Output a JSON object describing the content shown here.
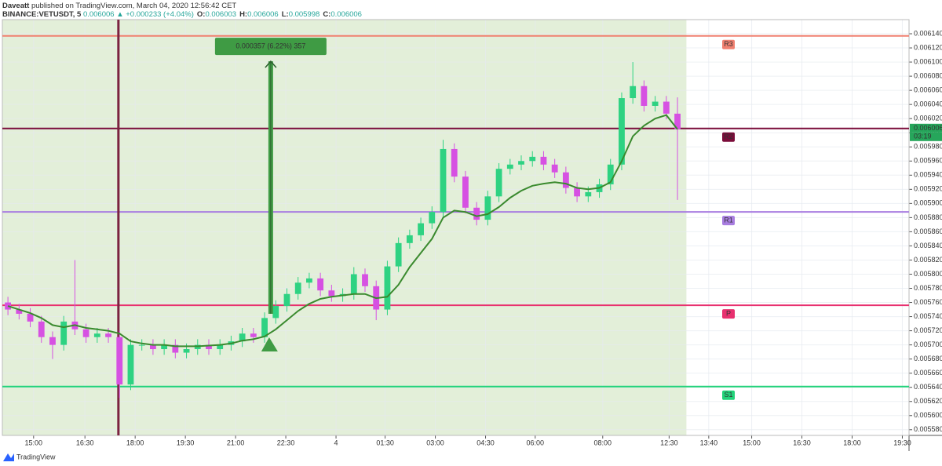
{
  "header": {
    "author": "Daveatt",
    "published": "published on TradingView.com, March 04, 2020 12:56:42 CET",
    "symbol": "BINANCE:VETUSDT, 5",
    "last": "0.006006",
    "change": "▲ +0.000233 (+4.04%)",
    "ohlc": [
      {
        "k": "O:",
        "v": "0.006003"
      },
      {
        "k": "H:",
        "v": "0.006006"
      },
      {
        "k": "L:",
        "v": "0.005998"
      },
      {
        "k": "C:",
        "v": "0.006006"
      }
    ]
  },
  "chart_data": {
    "type": "candlestick",
    "x": [
      10,
      30,
      50,
      70,
      90,
      110,
      130,
      150,
      170,
      190,
      210,
      230,
      250,
      270,
      290,
      310,
      330,
      350,
      370,
      390,
      410,
      430,
      450,
      470,
      490,
      510,
      530,
      550,
      570,
      590,
      610,
      630,
      650,
      670,
      690,
      710,
      730,
      750,
      770,
      790,
      810,
      830,
      850,
      870,
      890,
      910,
      930,
      950,
      970,
      990,
      1010,
      1030,
      1050,
      1070,
      1090,
      1110,
      1130,
      1150,
      1170,
      1190,
      1210
    ],
    "open": [
      0.00576,
      0.00575,
      0.005744,
      0.005733,
      0.005711,
      0.0057,
      0.005733,
      0.005722,
      0.005711,
      0.005716,
      0.005711,
      0.005644,
      0.0057,
      0.0057,
      0.005694,
      0.0057,
      0.005689,
      0.005694,
      0.0057,
      0.005694,
      0.0057,
      0.005705,
      0.005716,
      0.005711,
      0.005738,
      0.005755,
      0.005772,
      0.005788,
      0.005794,
      0.005777,
      0.005769,
      0.005772,
      0.0058,
      0.005783,
      0.00575,
      0.005811,
      0.005844,
      0.005855,
      0.005872,
      0.005888,
      0.005977,
      0.005938,
      0.005894,
      0.005877,
      0.00591,
      0.005949,
      0.005955,
      0.00596,
      0.005966,
      0.005955,
      0.005944,
      0.005922,
      0.00591,
      0.005916,
      0.005927,
      0.005955,
      0.006049,
      0.006066,
      0.006038,
      0.006044,
      0.006027
    ],
    "high": [
      0.005768,
      0.005758,
      0.005752,
      0.005741,
      0.005719,
      0.005741,
      0.00582,
      0.00573,
      0.005724,
      0.005724,
      0.00572,
      0.005708,
      0.005708,
      0.005708,
      0.005708,
      0.005708,
      0.005702,
      0.005708,
      0.005708,
      0.005708,
      0.005713,
      0.005724,
      0.005724,
      0.005746,
      0.005763,
      0.00578,
      0.005796,
      0.005802,
      0.005802,
      0.005785,
      0.00578,
      0.00581,
      0.005808,
      0.005791,
      0.005819,
      0.005852,
      0.005863,
      0.00588,
      0.005896,
      0.00599,
      0.005985,
      0.005946,
      0.005902,
      0.005918,
      0.005957,
      0.005963,
      0.005968,
      0.005974,
      0.005974,
      0.005963,
      0.005952,
      0.00593,
      0.005924,
      0.005935,
      0.005963,
      0.006057,
      0.0061,
      0.006074,
      0.006052,
      0.006052,
      0.00605
    ],
    "low": [
      0.005742,
      0.005736,
      0.005725,
      0.005703,
      0.00568,
      0.005692,
      0.005714,
      0.005703,
      0.005703,
      0.005703,
      0.005625,
      0.005636,
      0.005692,
      0.005686,
      0.005686,
      0.005681,
      0.005681,
      0.005686,
      0.005686,
      0.005686,
      0.005692,
      0.005697,
      0.005703,
      0.005703,
      0.00573,
      0.005747,
      0.005764,
      0.00578,
      0.005769,
      0.005761,
      0.005761,
      0.005764,
      0.005775,
      0.005735,
      0.005742,
      0.005803,
      0.005836,
      0.005847,
      0.005864,
      0.00588,
      0.00593,
      0.005886,
      0.005869,
      0.005869,
      0.005902,
      0.005941,
      0.005947,
      0.005952,
      0.005947,
      0.005936,
      0.005914,
      0.005902,
      0.005902,
      0.005908,
      0.005919,
      0.005947,
      0.006041,
      0.00603,
      0.00603,
      0.006019,
      0.005905
    ],
    "close": [
      0.00575,
      0.005744,
      0.005733,
      0.005711,
      0.0057,
      0.005733,
      0.005722,
      0.005711,
      0.005716,
      0.005711,
      0.005644,
      0.0057,
      0.0057,
      0.005694,
      0.0057,
      0.005689,
      0.005694,
      0.0057,
      0.005694,
      0.0057,
      0.005705,
      0.005716,
      0.005711,
      0.005738,
      0.005755,
      0.005772,
      0.005788,
      0.005794,
      0.005777,
      0.005769,
      0.005772,
      0.0058,
      0.005783,
      0.00575,
      0.005811,
      0.005844,
      0.005855,
      0.005872,
      0.005888,
      0.005977,
      0.005938,
      0.005894,
      0.005877,
      0.00591,
      0.005949,
      0.005955,
      0.00596,
      0.005966,
      0.005955,
      0.005944,
      0.005922,
      0.00591,
      0.005916,
      0.005927,
      0.005955,
      0.006049,
      0.006066,
      0.006038,
      0.006044,
      0.006027,
      0.006005
    ],
    "up_color": "#2ed282",
    "down_color": "#d651e2",
    "ma": {
      "color": "#3a8a2e",
      "values": [
        0.005755,
        0.00575,
        0.005745,
        0.005738,
        0.005728,
        0.005725,
        0.005728,
        0.005724,
        0.005722,
        0.00572,
        0.005716,
        0.005705,
        0.005702,
        0.0057,
        0.0057,
        0.005698,
        0.005698,
        0.005698,
        0.005699,
        0.0057,
        0.005702,
        0.005706,
        0.005708,
        0.005712,
        0.005722,
        0.005735,
        0.005748,
        0.005758,
        0.005765,
        0.005768,
        0.00577,
        0.005772,
        0.005772,
        0.005766,
        0.005768,
        0.005785,
        0.00581,
        0.00583,
        0.00585,
        0.00588,
        0.00589,
        0.005888,
        0.005882,
        0.005885,
        0.005895,
        0.005908,
        0.005918,
        0.005925,
        0.005928,
        0.00593,
        0.005928,
        0.005922,
        0.00592,
        0.005922,
        0.00593,
        0.00596,
        0.005995,
        0.00601,
        0.00602,
        0.006025,
        0.006005
      ]
    },
    "levels": [
      {
        "label": "R3",
        "value": 0.006137,
        "color": "#f08070"
      },
      {
        "label": "R2",
        "value": 0.006006,
        "color": "#7a0c3a"
      },
      {
        "label": "R1",
        "value": 0.005888,
        "color": "#a87de0"
      },
      {
        "label": "P",
        "value": 0.005756,
        "color": "#e8306f"
      },
      {
        "label": "S1",
        "value": 0.005641,
        "color": "#22d37a"
      }
    ],
    "vline": 208,
    "measure": {
      "label": "0.000357 (6.22%) 357",
      "x": 481,
      "from": 0.005744,
      "to": 0.006101,
      "color": "#3f9b44"
    },
    "last_price": 0.006006,
    "countdown": "03:19",
    "xlim": [
      0,
      1625
    ],
    "ylim": [
      0.005572,
      0.00616
    ],
    "grid": true,
    "xticks": [
      {
        "value": 56,
        "label": "15:00"
      },
      {
        "value": 148,
        "label": "16:30"
      },
      {
        "value": 238,
        "label": "18:00"
      },
      {
        "value": 328,
        "label": "19:30"
      },
      {
        "value": 418,
        "label": "21:00"
      },
      {
        "value": 508,
        "label": "22:30"
      },
      {
        "value": 598,
        "label": "4"
      },
      {
        "value": 686,
        "label": "01:30"
      },
      {
        "value": 776,
        "label": "03:00"
      },
      {
        "value": 866,
        "label": "04:30"
      },
      {
        "value": 955,
        "label": "06:00"
      },
      {
        "value": 1076,
        "label": "08:00"
      },
      {
        "value": 1195,
        "label": "12:30"
      },
      {
        "value": 1266,
        "label": "13:40"
      },
      {
        "value": 1343,
        "label": "15:00"
      },
      {
        "value": 1433,
        "label": "16:30"
      },
      {
        "value": 1523,
        "label": "18:00"
      },
      {
        "value": 1613,
        "label": "19:30"
      }
    ],
    "yticks": [
      {
        "value": 0.00558,
        "label": "0.005580"
      },
      {
        "value": 0.0056,
        "label": "0.005600"
      },
      {
        "value": 0.00562,
        "label": "0.005620"
      },
      {
        "value": 0.00564,
        "label": "0.005640"
      },
      {
        "value": 0.00566,
        "label": "0.005660"
      },
      {
        "value": 0.00568,
        "label": "0.005680"
      },
      {
        "value": 0.0057,
        "label": "0.005700"
      },
      {
        "value": 0.00572,
        "label": "0.005720"
      },
      {
        "value": 0.00574,
        "label": "0.005740"
      },
      {
        "value": 0.00576,
        "label": "0.005760"
      },
      {
        "value": 0.00578,
        "label": "0.005780"
      },
      {
        "value": 0.0058,
        "label": "0.005800"
      },
      {
        "value": 0.00582,
        "label": "0.005820"
      },
      {
        "value": 0.00584,
        "label": "0.005840"
      },
      {
        "value": 0.00586,
        "label": "0.005860"
      },
      {
        "value": 0.00588,
        "label": "0.005880"
      },
      {
        "value": 0.0059,
        "label": "0.005900"
      },
      {
        "value": 0.00592,
        "label": "0.005920"
      },
      {
        "value": 0.00594,
        "label": "0.005940"
      },
      {
        "value": 0.00596,
        "label": "0.005960"
      },
      {
        "value": 0.00598,
        "label": "0.005980"
      },
      {
        "value": 0.006,
        "label": "0.006000"
      },
      {
        "value": 0.00602,
        "label": "0.006020"
      },
      {
        "value": 0.00604,
        "label": "0.006040"
      },
      {
        "value": 0.00606,
        "label": "0.006060"
      },
      {
        "value": 0.00608,
        "label": "0.006080"
      },
      {
        "value": 0.0061,
        "label": "0.006100"
      },
      {
        "value": 0.00612,
        "label": "0.006120"
      },
      {
        "value": 0.00614,
        "label": "0.006140"
      }
    ]
  },
  "footer": {
    "brand": "TradingView"
  }
}
